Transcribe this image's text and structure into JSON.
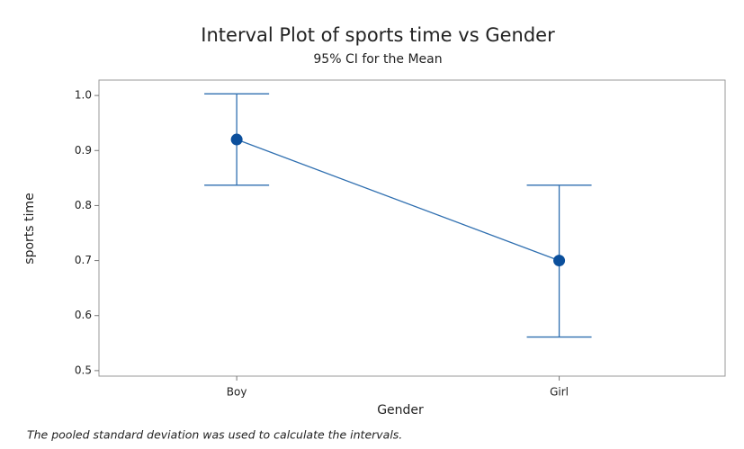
{
  "chart_data": {
    "type": "interval",
    "title": "Interval Plot of sports time vs Gender",
    "subtitle": "95% CI for the Mean",
    "x_label": "Gender",
    "y_label": "sports time",
    "footnote": "The pooled standard deviation was used to calculate the intervals.",
    "categories": [
      "Boy",
      "Girl"
    ],
    "values": [
      0.92,
      0.7
    ],
    "lower": [
      0.837,
      0.561
    ],
    "upper": [
      1.003,
      0.837
    ],
    "color": "#2f6fb0",
    "marker_color": "#0b4f9c",
    "ylim": [
      0.49,
      1.028
    ],
    "yticks": [
      {
        "value": 0.5,
        "label": "0.5"
      },
      {
        "value": 0.6,
        "label": "0.6"
      },
      {
        "value": 0.7,
        "label": "0.7"
      },
      {
        "value": 0.8,
        "label": "0.8"
      },
      {
        "value": 0.9,
        "label": "0.9"
      },
      {
        "value": 1.0,
        "label": "1.0"
      }
    ]
  }
}
